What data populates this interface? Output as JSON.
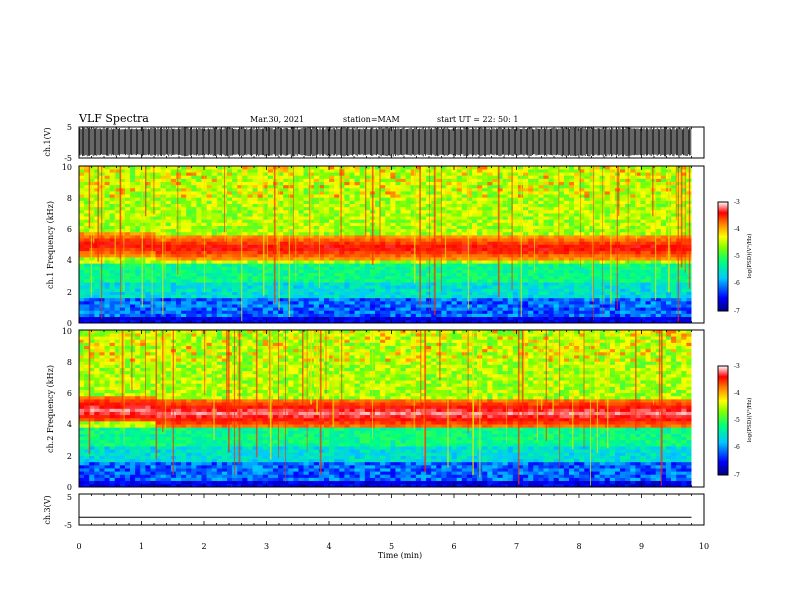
{
  "header": {
    "title": "VLF Spectra",
    "date": "Mar.30, 2021",
    "station": "station=MAM",
    "start": "start UT = 22: 50: 1"
  },
  "chart_data": [
    {
      "type": "line",
      "name": "waveform-ch1",
      "ylabel": "ch.1(V)",
      "ylim": [
        -5,
        5
      ],
      "yticks": [
        "5",
        "-5"
      ],
      "xlim": [
        0,
        10
      ],
      "description_series": "dense spike train ~4.8 V peaks"
    },
    {
      "type": "heatmap",
      "name": "spectrogram-ch1",
      "ylabel": "ch.1 Frequency (kHz)",
      "xlim": [
        0,
        10
      ],
      "ylim": [
        0,
        10
      ],
      "yticks": [
        "0",
        "2",
        "4",
        "6",
        "8",
        "10"
      ],
      "data_end_min": 9.8,
      "band_center_khz": 5.0,
      "band_center_khz_after_1_2min": 4.8,
      "colorbar": {
        "label": "log(PSD)(V²/Hz)",
        "range": [
          -7,
          -3
        ],
        "ticks": [
          "-3",
          "-4",
          "-5",
          "-6",
          "-7"
        ]
      }
    },
    {
      "type": "heatmap",
      "name": "spectrogram-ch2",
      "ylabel": "ch.2 Frequency (kHz)",
      "xlim": [
        0,
        10
      ],
      "ylim": [
        0,
        10
      ],
      "yticks": [
        "0",
        "2",
        "4",
        "6",
        "8",
        "10"
      ],
      "data_end_min": 9.8,
      "band_center_khz": 4.9,
      "colorbar": {
        "label": "log(PSD)(V²/Hz)",
        "range": [
          -7,
          -3
        ],
        "ticks": [
          "-3",
          "-4",
          "-5",
          "-6",
          "-7"
        ]
      }
    },
    {
      "type": "line",
      "name": "waveform-ch3",
      "ylabel": "ch.3(V)",
      "ylim": [
        -5,
        5
      ],
      "yticks": [
        "5",
        "-5"
      ],
      "values_constant": -2.5,
      "xlim": [
        0,
        10
      ],
      "xlabel": "Time (min)",
      "xticks": [
        "0",
        "1",
        "2",
        "3",
        "4",
        "5",
        "6",
        "7",
        "8",
        "9",
        "10"
      ]
    }
  ]
}
